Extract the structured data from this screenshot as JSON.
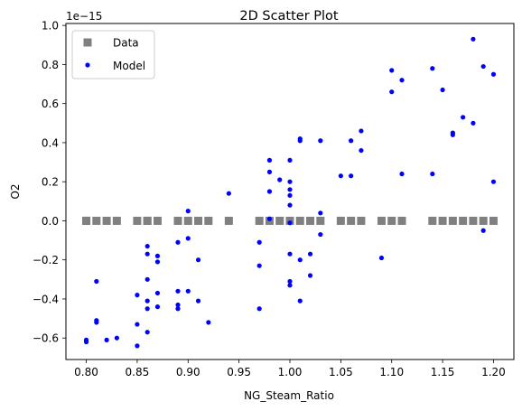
{
  "chart_data": {
    "type": "scatter",
    "title": "2D Scatter Plot",
    "xlabel": "NG_Steam_Ratio",
    "ylabel": "O2",
    "y_offset_label": "1e−15",
    "xlim": [
      0.78,
      1.22
    ],
    "ylim": [
      -0.71,
      1.01
    ],
    "x_ticks": [
      0.8,
      0.85,
      0.9,
      0.95,
      1.0,
      1.05,
      1.1,
      1.15,
      1.2
    ],
    "x_tick_labels": [
      "0.80",
      "0.85",
      "0.90",
      "0.95",
      "1.00",
      "1.05",
      "1.10",
      "1.15",
      "1.20"
    ],
    "y_ticks": [
      -0.6,
      -0.4,
      -0.2,
      0.0,
      0.2,
      0.4,
      0.6,
      0.8,
      1.0
    ],
    "y_tick_labels": [
      "−0.6",
      "−0.4",
      "−0.2",
      "0.0",
      "0.2",
      "0.4",
      "0.6",
      "0.8",
      "1.0"
    ],
    "grid": false,
    "legend_position": "top-left",
    "series": [
      {
        "name": "Data",
        "marker": "square",
        "color": "#808080",
        "x": [
          0.8,
          0.8,
          0.81,
          0.82,
          0.83,
          0.85,
          0.86,
          0.86,
          0.87,
          0.89,
          0.9,
          0.91,
          0.92,
          0.94,
          0.97,
          0.98,
          0.99,
          1.0,
          1.01,
          1.02,
          1.03,
          1.05,
          1.06,
          1.07,
          1.09,
          1.1,
          1.11,
          1.14,
          1.15,
          1.16,
          1.17,
          1.18,
          1.19,
          1.2
        ],
        "y": [
          0,
          0,
          0,
          0,
          0,
          0,
          0,
          0,
          0,
          0,
          0,
          0,
          0,
          0,
          0,
          0,
          0,
          0,
          0,
          0,
          0,
          0,
          0,
          0,
          0,
          0,
          0,
          0,
          0,
          0,
          0,
          0,
          0,
          0
        ]
      },
      {
        "name": "Model",
        "marker": "circle",
        "color": "#0000ff",
        "x": [
          0.8,
          0.8,
          0.81,
          0.81,
          0.81,
          0.82,
          0.83,
          0.85,
          0.85,
          0.85,
          0.86,
          0.86,
          0.86,
          0.86,
          0.86,
          0.86,
          0.87,
          0.87,
          0.87,
          0.87,
          0.89,
          0.89,
          0.89,
          0.89,
          0.9,
          0.9,
          0.9,
          0.91,
          0.91,
          0.92,
          0.94,
          0.97,
          0.97,
          0.97,
          0.98,
          0.98,
          0.98,
          0.98,
          0.99,
          1.0,
          1.0,
          1.0,
          1.0,
          1.0,
          1.0,
          1.0,
          1.0,
          1.0,
          1.01,
          1.01,
          1.01,
          1.01,
          1.02,
          1.02,
          1.03,
          1.03,
          1.03,
          1.05,
          1.06,
          1.06,
          1.07,
          1.07,
          1.09,
          1.1,
          1.1,
          1.11,
          1.11,
          1.14,
          1.14,
          1.15,
          1.16,
          1.16,
          1.17,
          1.18,
          1.18,
          1.19,
          1.19,
          1.2,
          1.2
        ],
        "y": [
          -0.62,
          -0.61,
          -0.52,
          -0.51,
          -0.31,
          -0.61,
          -0.6,
          -0.64,
          -0.53,
          -0.38,
          -0.57,
          -0.45,
          -0.3,
          -0.17,
          -0.13,
          -0.41,
          -0.44,
          -0.37,
          -0.18,
          -0.21,
          -0.45,
          -0.43,
          -0.36,
          -0.11,
          -0.09,
          0.05,
          -0.36,
          -0.2,
          -0.41,
          -0.52,
          0.14,
          -0.45,
          -0.23,
          -0.11,
          0.31,
          0.25,
          0.15,
          0.01,
          0.21,
          0.31,
          0.2,
          0.16,
          0.13,
          0.08,
          -0.01,
          -0.17,
          -0.31,
          -0.33,
          -0.41,
          0.42,
          0.41,
          -0.2,
          -0.17,
          -0.28,
          0.41,
          -0.07,
          0.04,
          0.23,
          0.41,
          0.23,
          0.46,
          0.36,
          -0.19,
          0.77,
          0.66,
          0.72,
          0.24,
          0.78,
          0.24,
          0.67,
          0.45,
          0.44,
          0.53,
          0.93,
          0.5,
          0.79,
          -0.05,
          0.75,
          0.2
        ]
      }
    ]
  }
}
